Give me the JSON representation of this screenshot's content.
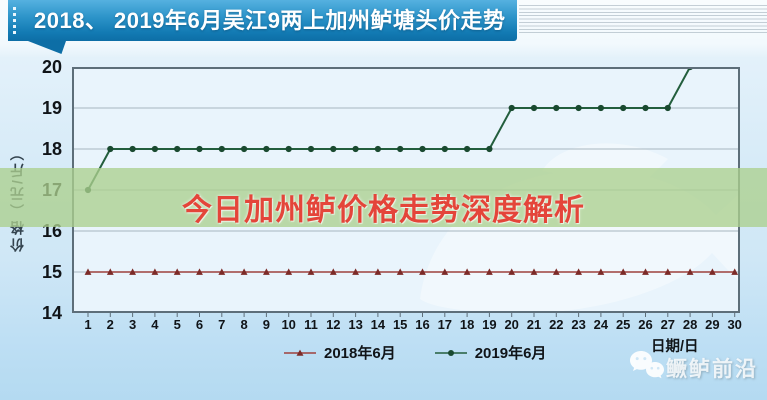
{
  "header": {
    "title": "2018、 2019年6月吴江9两上加州鲈塘头价走势"
  },
  "overlay": {
    "headline": "今日加州鲈价格走势深度解析"
  },
  "footer": {
    "xaxis_unit_label": "日期/日",
    "brand_name": "鳜鲈前沿",
    "brand_icon": "wechat-icon"
  },
  "colors": {
    "banner_top": "#55b1e0",
    "banner_bottom": "#0d6ea6",
    "plot_bg": "#e9f4fc",
    "plot_border": "#5d6e79",
    "grid_line": "#a8b6bf",
    "band": "#acd08e",
    "headline_text": "#e4453a",
    "series_2018": "#9e403c",
    "series_2019": "#235e3d"
  },
  "chart_data": {
    "type": "line",
    "title": "2018、2019年6月吴江9两上加州鲈塘头价走势",
    "xlabel": "日期/日",
    "ylabel": "价格（元/斤）",
    "x": [
      1,
      2,
      3,
      4,
      5,
      6,
      7,
      8,
      9,
      10,
      11,
      12,
      13,
      14,
      15,
      16,
      17,
      18,
      19,
      20,
      21,
      22,
      23,
      24,
      25,
      26,
      27,
      28,
      29,
      30
    ],
    "ylim": [
      14,
      20
    ],
    "yticks": [
      14,
      15,
      16,
      17,
      18,
      19,
      20
    ],
    "grid": true,
    "legend_position": "bottom-center",
    "series": [
      {
        "name": "2018年6月",
        "color": "#9e403c",
        "marker": "triangle",
        "marker_color": "#7c2b28",
        "values": [
          15,
          15,
          15,
          15,
          15,
          15,
          15,
          15,
          15,
          15,
          15,
          15,
          15,
          15,
          15,
          15,
          15,
          15,
          15,
          15,
          15,
          15,
          15,
          15,
          15,
          15,
          15,
          15,
          15,
          15
        ]
      },
      {
        "name": "2019年6月",
        "color": "#235e3d",
        "marker": "circle",
        "marker_color": "#1a4a30",
        "values": [
          17,
          18,
          18,
          18,
          18,
          18,
          18,
          18,
          18,
          18,
          18,
          18,
          18,
          18,
          18,
          18,
          18,
          18,
          18,
          19,
          19,
          19,
          19,
          19,
          19,
          19,
          19,
          20,
          null,
          null
        ]
      }
    ]
  }
}
